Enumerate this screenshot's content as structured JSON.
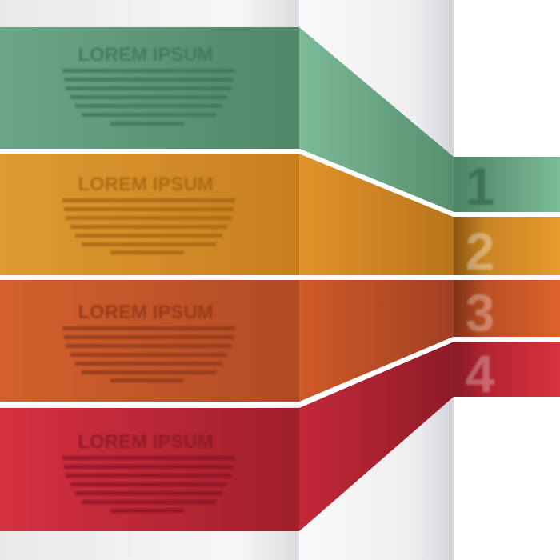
{
  "infographic": {
    "steps": [
      {
        "number": "1",
        "heading": "LOREM IPSUM",
        "color_left": "#5f9878",
        "color_right": "#7ab995"
      },
      {
        "number": "2",
        "heading": "LOREM IPSUM",
        "color_left": "#d28a25",
        "color_right": "#e39a2a"
      },
      {
        "number": "3",
        "heading": "LOREM IPSUM",
        "color_left": "#c2532a",
        "color_right": "#d8602b"
      },
      {
        "number": "4",
        "heading": "LOREM IPSUM",
        "color_left": "#c92a38",
        "color_right": "#d3303f"
      }
    ],
    "colors": {
      "page_background": "#ffffff",
      "panel_light": "#f1f1f3",
      "panel_shadow": "#d9d9de",
      "separator": "#ffffff"
    }
  }
}
